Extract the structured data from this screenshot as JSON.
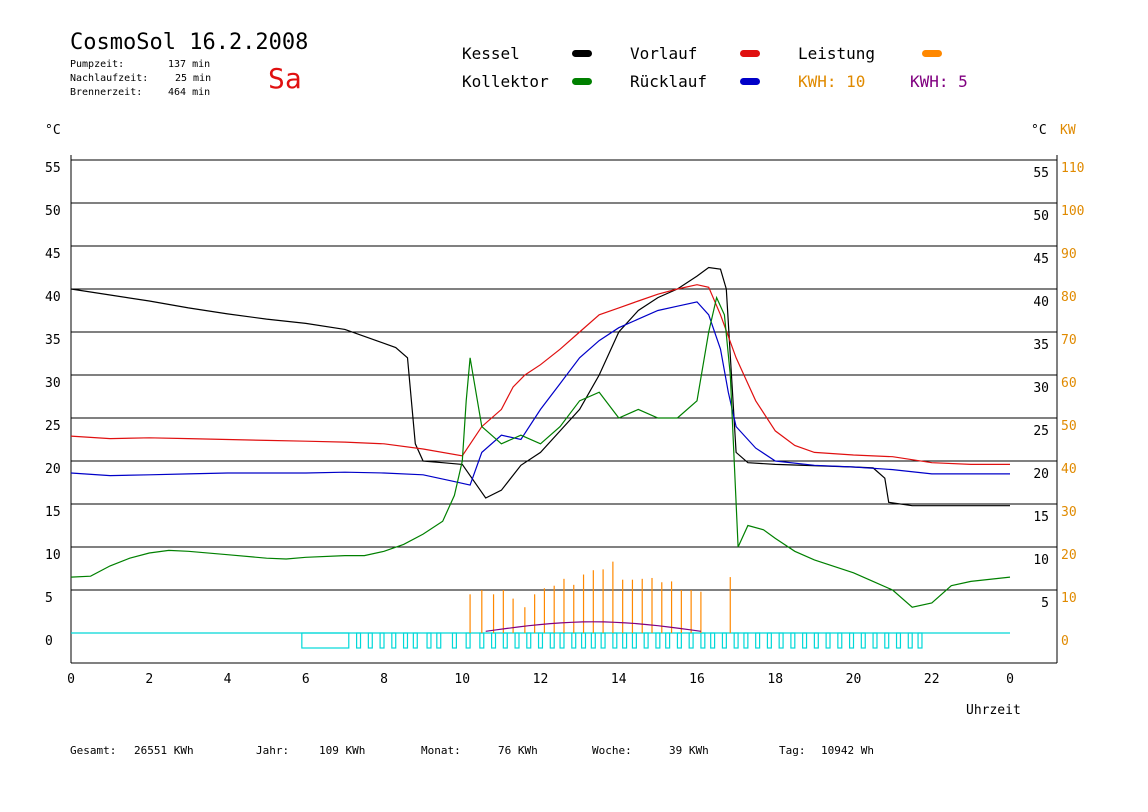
{
  "header": {
    "title": "CosmoSol 16.2.2008",
    "day": "Sa",
    "pump_label": "Pumpzeit:",
    "pump_value": "137 min",
    "nachlauf_label": "Nachlaufzeit:",
    "nachlauf_value": "25 min",
    "brenner_label": "Brennerzeit:",
    "brenner_value": "464 min"
  },
  "legend": {
    "kessel": "Kessel",
    "vorlauf": "Vorlauf",
    "leistung": "Leistung",
    "kollektor": "Kollektor",
    "ruecklauf": "Rücklauf",
    "kwh_orange": "KWH: 10",
    "kwh_purple": "KWH: 5"
  },
  "colors": {
    "kessel": "#000000",
    "vorlauf": "#e01010",
    "leistung": "#ff8800",
    "kollektor": "#008000",
    "ruecklauf": "#0000c8",
    "kwh2": "#800080",
    "pump": "#00d8d8",
    "axis_orange": "#e08a00"
  },
  "footer": {
    "gesamt_label": "Gesamt:",
    "gesamt_value": "26551 KWh",
    "jahr_label": "Jahr:",
    "jahr_value": "109 KWh",
    "monat_label": "Monat:",
    "monat_value": "76 KWh",
    "woche_label": "Woche:",
    "woche_value": "39 KWh",
    "tag_label": "Tag:",
    "tag_value": "10942 Wh"
  },
  "chart_data": {
    "type": "line",
    "xlabel": "Uhrzeit",
    "ylabel_left": "°C",
    "ylabel_right": "°C",
    "ylabel_right2": "KW",
    "xlim": [
      0,
      24
    ],
    "ylim": [
      0,
      55
    ],
    "grid": true,
    "x_ticks": [
      "0",
      "2",
      "4",
      "6",
      "8",
      "10",
      "12",
      "14",
      "16",
      "18",
      "20",
      "22",
      "0"
    ],
    "y_ticks": [
      "0",
      "5",
      "10",
      "15",
      "20",
      "25",
      "30",
      "35",
      "40",
      "45",
      "50",
      "55"
    ],
    "y_ticks_right": [
      "5",
      "10",
      "15",
      "20",
      "25",
      "30",
      "35",
      "40",
      "45",
      "50",
      "55"
    ],
    "y2_ticks": [
      "0",
      "10",
      "20",
      "30",
      "40",
      "50",
      "60",
      "70",
      "80",
      "90",
      "100",
      "110"
    ],
    "series": [
      {
        "name": "Kessel",
        "color": "#000000",
        "points": [
          [
            0,
            40
          ],
          [
            1,
            39.3
          ],
          [
            2,
            38.6
          ],
          [
            3,
            37.8
          ],
          [
            4,
            37.1
          ],
          [
            5,
            36.5
          ],
          [
            6,
            36
          ],
          [
            7,
            35.3
          ],
          [
            7.8,
            34
          ],
          [
            8.3,
            33.2
          ],
          [
            8.6,
            32
          ],
          [
            8.8,
            22
          ],
          [
            9,
            20
          ],
          [
            9.5,
            19.8
          ],
          [
            10,
            19.6
          ],
          [
            10.4,
            17
          ],
          [
            10.6,
            15.7
          ],
          [
            11,
            16.6
          ],
          [
            11.5,
            19.5
          ],
          [
            12,
            21
          ],
          [
            12.5,
            23.5
          ],
          [
            13,
            26
          ],
          [
            13.5,
            30
          ],
          [
            14,
            35
          ],
          [
            14.5,
            37.5
          ],
          [
            15,
            39
          ],
          [
            15.5,
            40
          ],
          [
            16,
            41.5
          ],
          [
            16.3,
            42.5
          ],
          [
            16.6,
            42.3
          ],
          [
            16.75,
            40
          ],
          [
            17,
            21
          ],
          [
            17.3,
            19.8
          ],
          [
            18,
            19.6
          ],
          [
            20,
            19.3
          ],
          [
            20.5,
            19.2
          ],
          [
            20.8,
            18
          ],
          [
            20.9,
            15.2
          ],
          [
            21.5,
            14.8
          ],
          [
            24,
            14.8
          ]
        ]
      },
      {
        "name": "Vorlauf",
        "color": "#e01010",
        "points": [
          [
            0,
            22.9
          ],
          [
            1,
            22.6
          ],
          [
            2,
            22.7
          ],
          [
            3,
            22.6
          ],
          [
            4,
            22.5
          ],
          [
            5,
            22.4
          ],
          [
            6,
            22.3
          ],
          [
            7,
            22.2
          ],
          [
            8,
            22
          ],
          [
            9,
            21.4
          ],
          [
            10,
            20.6
          ],
          [
            10.5,
            24
          ],
          [
            11,
            26
          ],
          [
            11.3,
            28.6
          ],
          [
            11.6,
            30
          ],
          [
            12,
            31.2
          ],
          [
            12.5,
            33
          ],
          [
            13,
            35
          ],
          [
            13.5,
            37
          ],
          [
            14,
            37.8
          ],
          [
            14.5,
            38.6
          ],
          [
            15,
            39.4
          ],
          [
            15.5,
            40
          ],
          [
            16,
            40.5
          ],
          [
            16.3,
            40.2
          ],
          [
            16.6,
            37
          ],
          [
            17,
            32
          ],
          [
            17.5,
            27
          ],
          [
            18,
            23.5
          ],
          [
            18.5,
            21.8
          ],
          [
            19,
            21
          ],
          [
            20,
            20.7
          ],
          [
            21,
            20.5
          ],
          [
            22,
            19.8
          ],
          [
            23,
            19.6
          ],
          [
            24,
            19.6
          ]
        ]
      },
      {
        "name": "Rücklauf",
        "color": "#0000c8",
        "points": [
          [
            0,
            18.6
          ],
          [
            1,
            18.3
          ],
          [
            2,
            18.4
          ],
          [
            3,
            18.5
          ],
          [
            4,
            18.6
          ],
          [
            5,
            18.6
          ],
          [
            6,
            18.6
          ],
          [
            7,
            18.7
          ],
          [
            8,
            18.6
          ],
          [
            9,
            18.4
          ],
          [
            9.8,
            17.6
          ],
          [
            10.2,
            17.2
          ],
          [
            10.5,
            21
          ],
          [
            11,
            23
          ],
          [
            11.5,
            22.5
          ],
          [
            12,
            26
          ],
          [
            12.5,
            29
          ],
          [
            13,
            32
          ],
          [
            13.5,
            34
          ],
          [
            14,
            35.5
          ],
          [
            14.5,
            36.5
          ],
          [
            15,
            37.5
          ],
          [
            15.5,
            38
          ],
          [
            16,
            38.5
          ],
          [
            16.3,
            37
          ],
          [
            16.6,
            33
          ],
          [
            16.8,
            28
          ],
          [
            17,
            24
          ],
          [
            17.5,
            21.5
          ],
          [
            18,
            20
          ],
          [
            19,
            19.5
          ],
          [
            20,
            19.3
          ],
          [
            21,
            19
          ],
          [
            22,
            18.5
          ],
          [
            23,
            18.5
          ],
          [
            24,
            18.5
          ]
        ]
      },
      {
        "name": "Kollektor",
        "color": "#008000",
        "points": [
          [
            0,
            6.5
          ],
          [
            0.5,
            6.6
          ],
          [
            1,
            7.8
          ],
          [
            1.5,
            8.7
          ],
          [
            2,
            9.3
          ],
          [
            2.5,
            9.6
          ],
          [
            3,
            9.5
          ],
          [
            4,
            9.1
          ],
          [
            5,
            8.7
          ],
          [
            5.5,
            8.6
          ],
          [
            6,
            8.8
          ],
          [
            7,
            9
          ],
          [
            7.5,
            9
          ],
          [
            8,
            9.5
          ],
          [
            8.5,
            10.3
          ],
          [
            9,
            11.5
          ],
          [
            9.5,
            13
          ],
          [
            9.8,
            16
          ],
          [
            10,
            20
          ],
          [
            10.1,
            27
          ],
          [
            10.2,
            32
          ],
          [
            10.5,
            24
          ],
          [
            11,
            22
          ],
          [
            11.5,
            23
          ],
          [
            12,
            22
          ],
          [
            12.5,
            24
          ],
          [
            13,
            27
          ],
          [
            13.5,
            28
          ],
          [
            14,
            25
          ],
          [
            14.5,
            26
          ],
          [
            15,
            25
          ],
          [
            15.5,
            25
          ],
          [
            16,
            27
          ],
          [
            16.3,
            35
          ],
          [
            16.5,
            39
          ],
          [
            16.7,
            37
          ],
          [
            16.85,
            30
          ],
          [
            16.95,
            20
          ],
          [
            17.05,
            10
          ],
          [
            17.3,
            12.5
          ],
          [
            17.7,
            12
          ],
          [
            18,
            11
          ],
          [
            18.5,
            9.5
          ],
          [
            19,
            8.5
          ],
          [
            20,
            7
          ],
          [
            20.5,
            6
          ],
          [
            21,
            5
          ],
          [
            21.5,
            3
          ],
          [
            22,
            3.5
          ],
          [
            22.5,
            5.5
          ],
          [
            23,
            6
          ],
          [
            24,
            6.5
          ]
        ]
      },
      {
        "name": "Leistung",
        "color": "#ff8800",
        "pulses": [
          10.2,
          10.5,
          10.8,
          11.05,
          11.3,
          11.6,
          11.85,
          12.1,
          12.35,
          12.6,
          12.85,
          13.1,
          13.35,
          13.6,
          13.85,
          14.1,
          14.35,
          14.6,
          14.85,
          15.1,
          15.35,
          15.6,
          15.85,
          16.1,
          16.85
        ],
        "pulse_heights": [
          4.5,
          5,
          4.5,
          5,
          4,
          3,
          4.5,
          5.2,
          5.5,
          6.3,
          5.6,
          6.8,
          7.3,
          7.4,
          8.3,
          6.2,
          6.2,
          6.3,
          6.4,
          5.9,
          6,
          5,
          5,
          4.8,
          6.5
        ]
      }
    ],
    "pump_bars": [
      [
        5.9,
        7.1
      ],
      [
        7.3,
        7.4
      ],
      [
        7.6,
        7.7
      ],
      [
        7.9,
        8.0
      ],
      [
        8.2,
        8.3
      ],
      [
        8.5,
        8.6
      ],
      [
        8.75,
        8.85
      ],
      [
        9.1,
        9.2
      ],
      [
        9.35,
        9.45
      ],
      [
        9.75,
        9.85
      ],
      [
        10.1,
        10.2
      ],
      [
        10.45,
        10.55
      ],
      [
        10.75,
        10.85
      ],
      [
        11.05,
        11.15
      ],
      [
        11.35,
        11.45
      ],
      [
        11.65,
        11.75
      ],
      [
        11.95,
        12.05
      ],
      [
        12.25,
        12.35
      ],
      [
        12.5,
        12.6
      ],
      [
        12.8,
        12.9
      ],
      [
        13.05,
        13.15
      ],
      [
        13.3,
        13.4
      ],
      [
        13.55,
        13.65
      ],
      [
        13.85,
        13.95
      ],
      [
        14.1,
        14.2
      ],
      [
        14.35,
        14.45
      ],
      [
        14.65,
        14.75
      ],
      [
        14.95,
        15.05
      ],
      [
        15.2,
        15.3
      ],
      [
        15.5,
        15.6
      ],
      [
        15.8,
        15.9
      ],
      [
        16.1,
        16.2
      ],
      [
        16.35,
        16.45
      ],
      [
        16.65,
        16.75
      ],
      [
        16.95,
        17.05
      ],
      [
        17.2,
        17.3
      ],
      [
        17.5,
        17.6
      ],
      [
        17.8,
        17.9
      ],
      [
        18.1,
        18.2
      ],
      [
        18.4,
        18.5
      ],
      [
        18.7,
        18.8
      ],
      [
        19,
        19.1
      ],
      [
        19.3,
        19.4
      ],
      [
        19.6,
        19.7
      ],
      [
        19.9,
        20
      ],
      [
        20.2,
        20.3
      ],
      [
        20.5,
        20.6
      ],
      [
        20.8,
        20.9
      ],
      [
        21.1,
        21.2
      ],
      [
        21.4,
        21.5
      ],
      [
        21.65,
        21.75
      ]
    ]
  }
}
